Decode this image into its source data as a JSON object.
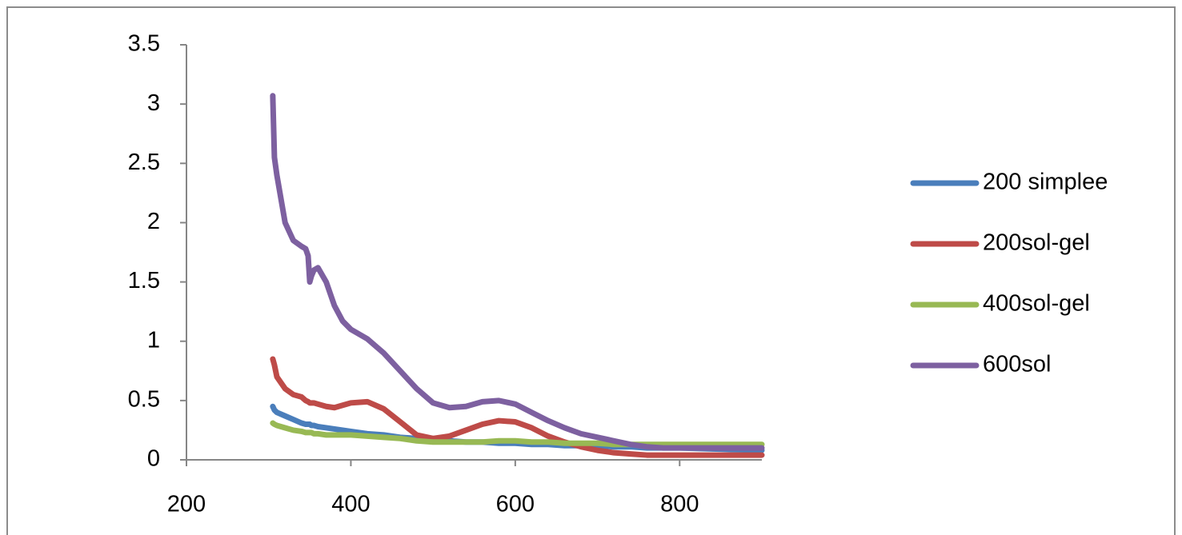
{
  "chart_data": {
    "type": "line",
    "x": [
      305,
      307,
      310,
      320,
      330,
      340,
      345,
      348,
      350,
      352,
      355,
      360,
      370,
      380,
      390,
      400,
      420,
      440,
      460,
      480,
      500,
      520,
      540,
      560,
      580,
      600,
      620,
      640,
      660,
      680,
      700,
      720,
      740,
      760,
      780,
      800,
      850,
      900
    ],
    "series": [
      {
        "name": "200 simplee",
        "color": "#4a7ebb",
        "values": [
          0.45,
          0.42,
          0.4,
          0.37,
          0.34,
          0.31,
          0.3,
          0.3,
          0.3,
          0.29,
          0.29,
          0.28,
          0.27,
          0.26,
          0.25,
          0.24,
          0.22,
          0.21,
          0.19,
          0.18,
          0.17,
          0.16,
          0.15,
          0.15,
          0.14,
          0.14,
          0.13,
          0.13,
          0.12,
          0.12,
          0.12,
          0.11,
          0.11,
          0.1,
          0.1,
          0.1,
          0.09,
          0.08
        ]
      },
      {
        "name": "200sol-gel",
        "color": "#be4b48",
        "values": [
          0.85,
          0.8,
          0.7,
          0.6,
          0.55,
          0.53,
          0.5,
          0.49,
          0.48,
          0.48,
          0.48,
          0.47,
          0.45,
          0.44,
          0.46,
          0.48,
          0.49,
          0.43,
          0.32,
          0.21,
          0.18,
          0.2,
          0.25,
          0.3,
          0.33,
          0.32,
          0.27,
          0.2,
          0.15,
          0.11,
          0.08,
          0.06,
          0.05,
          0.04,
          0.04,
          0.04,
          0.04,
          0.04
        ]
      },
      {
        "name": "400sol-gel",
        "color": "#98b954",
        "values": [
          0.31,
          0.3,
          0.29,
          0.27,
          0.25,
          0.24,
          0.23,
          0.23,
          0.23,
          0.23,
          0.22,
          0.22,
          0.21,
          0.21,
          0.21,
          0.21,
          0.2,
          0.19,
          0.18,
          0.16,
          0.15,
          0.15,
          0.15,
          0.15,
          0.16,
          0.16,
          0.15,
          0.15,
          0.14,
          0.14,
          0.14,
          0.13,
          0.13,
          0.13,
          0.13,
          0.13,
          0.13,
          0.13
        ]
      },
      {
        "name": "600sol",
        "color": "#7d60a0",
        "values": [
          3.07,
          2.55,
          2.4,
          2.0,
          1.85,
          1.8,
          1.78,
          1.72,
          1.5,
          1.55,
          1.6,
          1.62,
          1.5,
          1.3,
          1.17,
          1.1,
          1.02,
          0.9,
          0.75,
          0.6,
          0.48,
          0.44,
          0.45,
          0.49,
          0.5,
          0.47,
          0.4,
          0.33,
          0.27,
          0.22,
          0.19,
          0.16,
          0.13,
          0.11,
          0.1,
          0.1,
          0.1,
          0.1
        ]
      }
    ],
    "xlim": [
      200,
      900
    ],
    "xticks": [
      200,
      400,
      600,
      800
    ],
    "ylim": [
      0,
      3.5
    ],
    "yticks": [
      0,
      0.5,
      1,
      1.5,
      2,
      2.5,
      3,
      3.5
    ],
    "grid": false,
    "legend": "right"
  }
}
